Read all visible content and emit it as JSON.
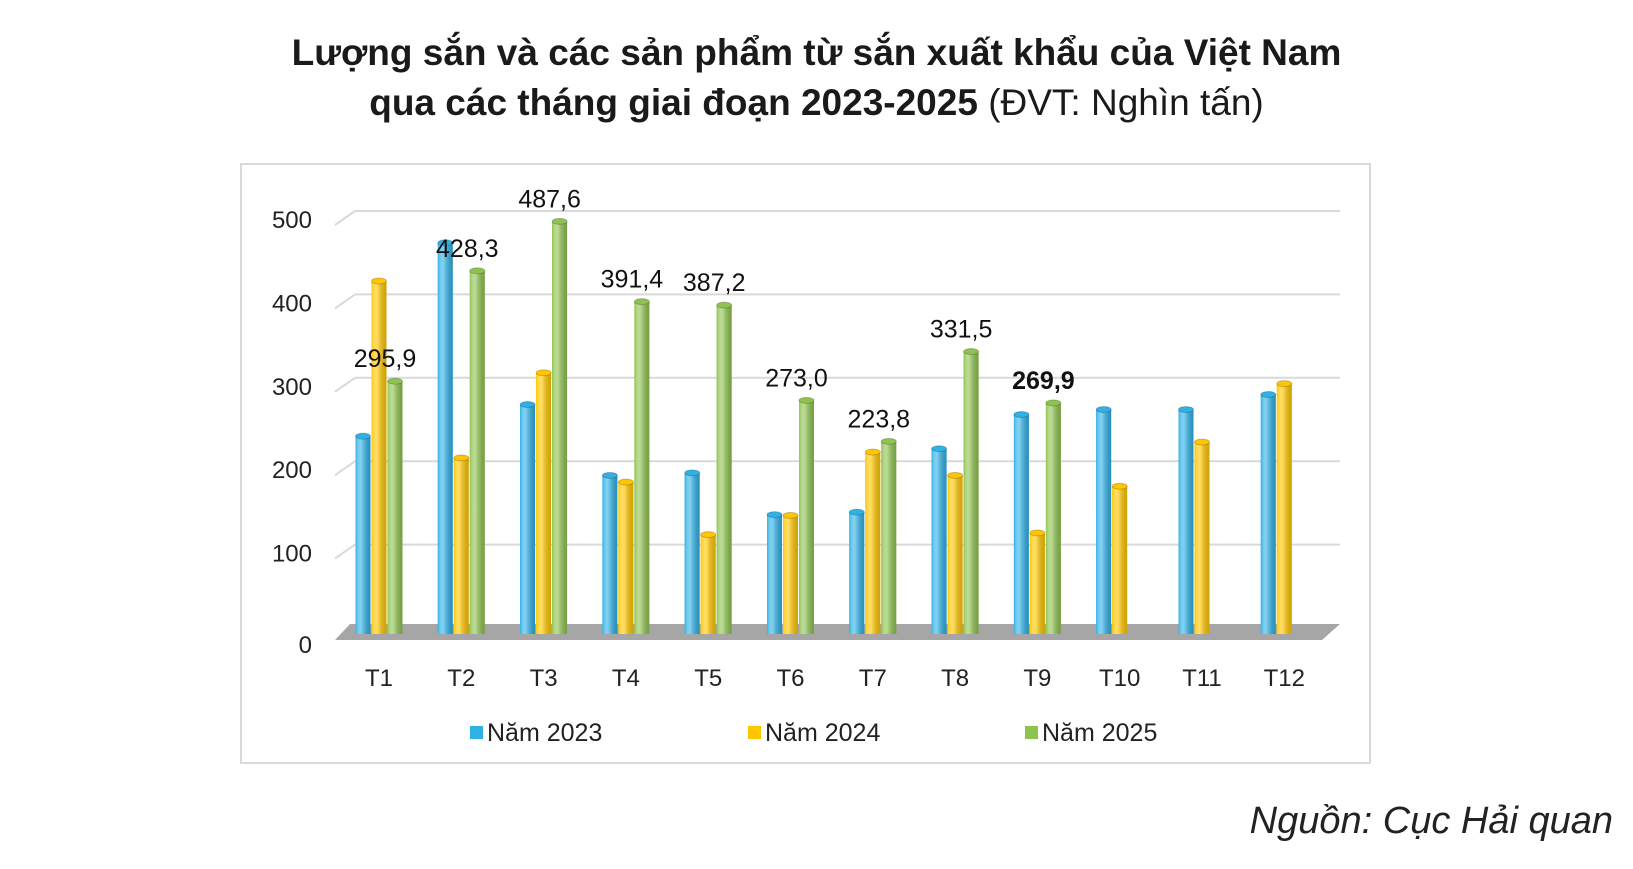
{
  "title": {
    "line1": "Lượng sắn và các sản phẩm từ sắn xuất khẩu của Việt Nam",
    "line2_bold": "qua các tháng giai đoạn 2023-2025",
    "line2_unit": " (ĐVT: Nghìn tấn)"
  },
  "source": "Nguồn: Cục Hải quan",
  "chart_data": {
    "type": "bar",
    "title": "Lượng sắn và các sản phẩm từ sắn xuất khẩu của Việt Nam qua các tháng giai đoạn 2023-2025 (ĐVT: Nghìn tấn)",
    "xlabel": "",
    "ylabel": "",
    "ylim": [
      0,
      500
    ],
    "yticks": [
      "0",
      "100",
      "200",
      "300",
      "400",
      "500"
    ],
    "grid": true,
    "legend_position": "bottom",
    "categories": [
      "T1",
      "T2",
      "T3",
      "T4",
      "T5",
      "T6",
      "T7",
      "T8",
      "T9",
      "T10",
      "T11",
      "T12"
    ],
    "series": [
      {
        "name": "Năm 2023",
        "color": "#2fb1e6",
        "values": [
          230,
          462,
          268,
          183,
          186,
          136,
          139,
          215,
          256,
          262,
          262,
          280
        ]
      },
      {
        "name": "Năm 2024",
        "color": "#ffc600",
        "values": [
          416,
          204,
          306,
          175,
          112,
          135,
          211,
          183,
          114,
          170,
          223,
          293
        ]
      },
      {
        "name": "Năm 2025",
        "color": "#8fc350",
        "values": [
          295.9,
          428.3,
          487.6,
          391.4,
          387.2,
          273.0,
          223.8,
          331.5,
          269.9,
          null,
          null,
          null
        ]
      }
    ],
    "data_labels": {
      "series": "Năm 2025",
      "labels": [
        "295,9",
        "428,3",
        "487,6",
        "391,4",
        "387,2",
        "273,0",
        "223,8",
        "331,5",
        "269,9"
      ],
      "bold_index": 8
    }
  }
}
